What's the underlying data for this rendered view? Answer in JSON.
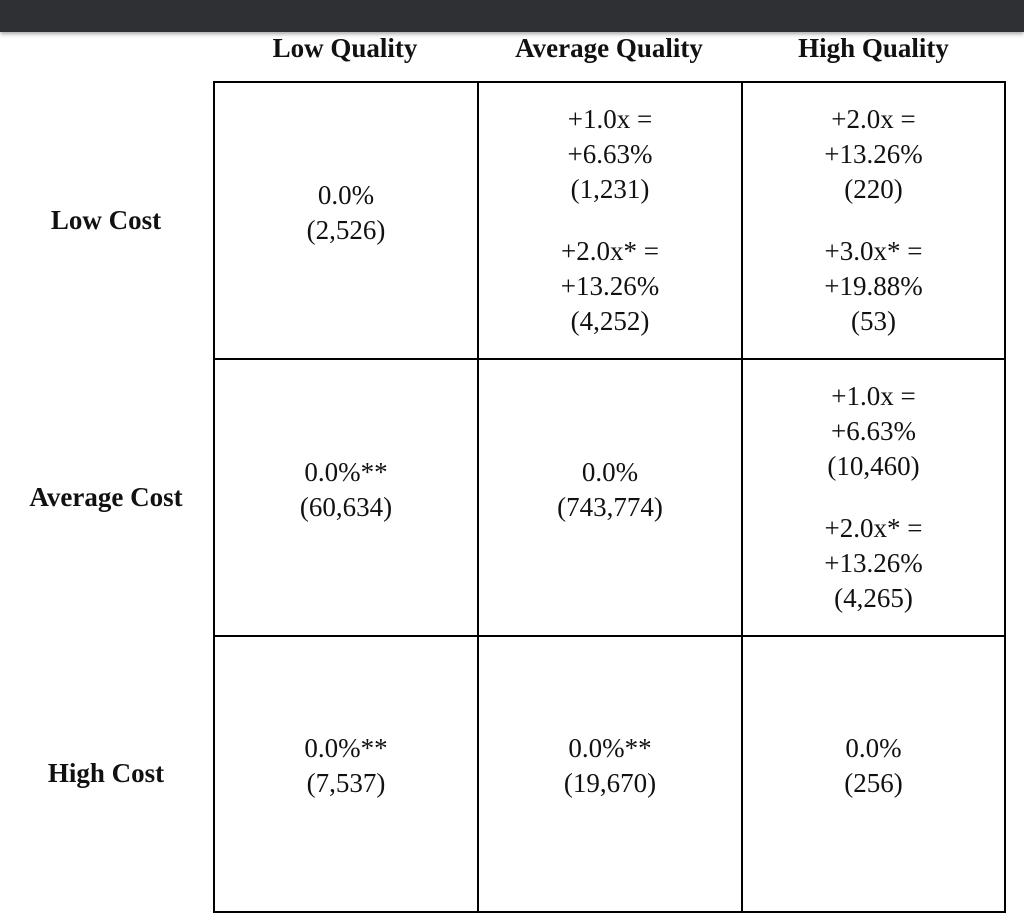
{
  "columns": [
    "Low Quality",
    "Average Quality",
    "High Quality"
  ],
  "rows": [
    "Low Cost",
    "Average Cost",
    "High Cost"
  ],
  "cells": {
    "r0c0": {
      "pct": "0.0%",
      "count": "(2,526)"
    },
    "r0c1": {
      "a_mult": "+1.0x =",
      "a_pct": "+6.63%",
      "a_count": "(1,231)",
      "b_mult": "+2.0x* =",
      "b_pct": "+13.26%",
      "b_count": "(4,252)"
    },
    "r0c2": {
      "a_mult": "+2.0x =",
      "a_pct": "+13.26%",
      "a_count": "(220)",
      "b_mult": "+3.0x* =",
      "b_pct": "+19.88%",
      "b_count": "(53)"
    },
    "r1c0": {
      "pct": "0.0%**",
      "count": "(60,634)"
    },
    "r1c1": {
      "pct": "0.0%",
      "count": "(743,774)"
    },
    "r1c2": {
      "a_mult": "+1.0x =",
      "a_pct": "+6.63%",
      "a_count": "(10,460)",
      "b_mult": "+2.0x* =",
      "b_pct": "+13.26%",
      "b_count": "(4,265)"
    },
    "r2c0": {
      "pct": "0.0%**",
      "count": "(7,537)"
    },
    "r2c1": {
      "pct": "0.0%**",
      "count": "(19,670)"
    },
    "r2c2": {
      "pct": "0.0%",
      "count": "(256)"
    }
  }
}
